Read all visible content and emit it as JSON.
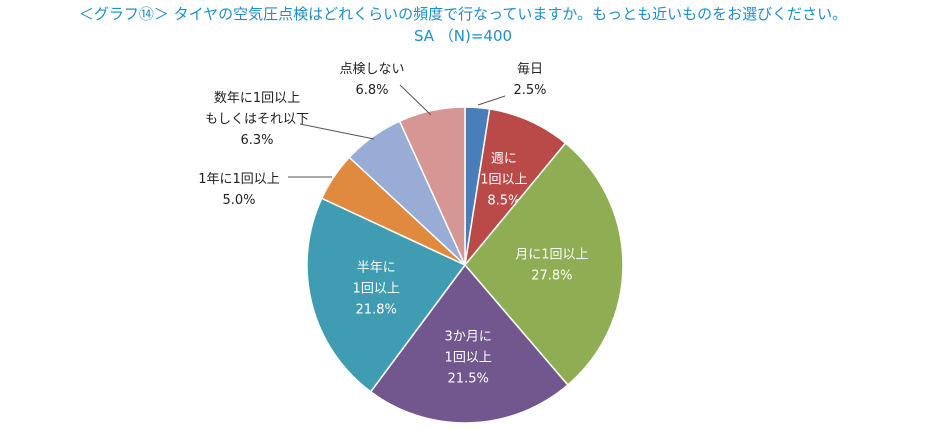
{
  "header": {
    "title": "＜グラフ⑭＞ タイヤの空気圧点検はどれくらいの頻度で行なっていますか。もっとも近いものをお選びください。",
    "subtitle": "SA （N)=400"
  },
  "chart_data": {
    "type": "pie",
    "unit": "%",
    "start_angle_deg": 0,
    "direction": "clockwise",
    "slices": [
      {
        "label_lines": [
          "毎日"
        ],
        "value": 2.5,
        "value_label": "2.5%",
        "color": "#4a7ebb",
        "label_position": "outside"
      },
      {
        "label_lines": [
          "週に",
          "1回以上"
        ],
        "value": 8.5,
        "value_label": "8.5%",
        "color": "#b94a48",
        "label_position": "inside"
      },
      {
        "label_lines": [
          "月に1回以上"
        ],
        "value": 27.8,
        "value_label": "27.8%",
        "color": "#8fad52",
        "label_position": "inside"
      },
      {
        "label_lines": [
          "3か月に",
          "1回以上"
        ],
        "value": 21.5,
        "value_label": "21.5%",
        "color": "#72578f",
        "label_position": "inside"
      },
      {
        "label_lines": [
          "半年に",
          "1回以上"
        ],
        "value": 21.8,
        "value_label": "21.8%",
        "color": "#3f9cb3",
        "label_position": "inside"
      },
      {
        "label_lines": [
          "1年に1回以上"
        ],
        "value": 5.0,
        "value_label": "5.0%",
        "color": "#e08a3f",
        "label_position": "outside"
      },
      {
        "label_lines": [
          "数年に1回以上",
          "もしくはそれ以下"
        ],
        "value": 6.3,
        "value_label": "6.3%",
        "color": "#98acd6",
        "label_position": "outside"
      },
      {
        "label_lines": [
          "点検しない"
        ],
        "value": 6.8,
        "value_label": "6.8%",
        "color": "#d69694",
        "label_position": "outside"
      }
    ]
  }
}
